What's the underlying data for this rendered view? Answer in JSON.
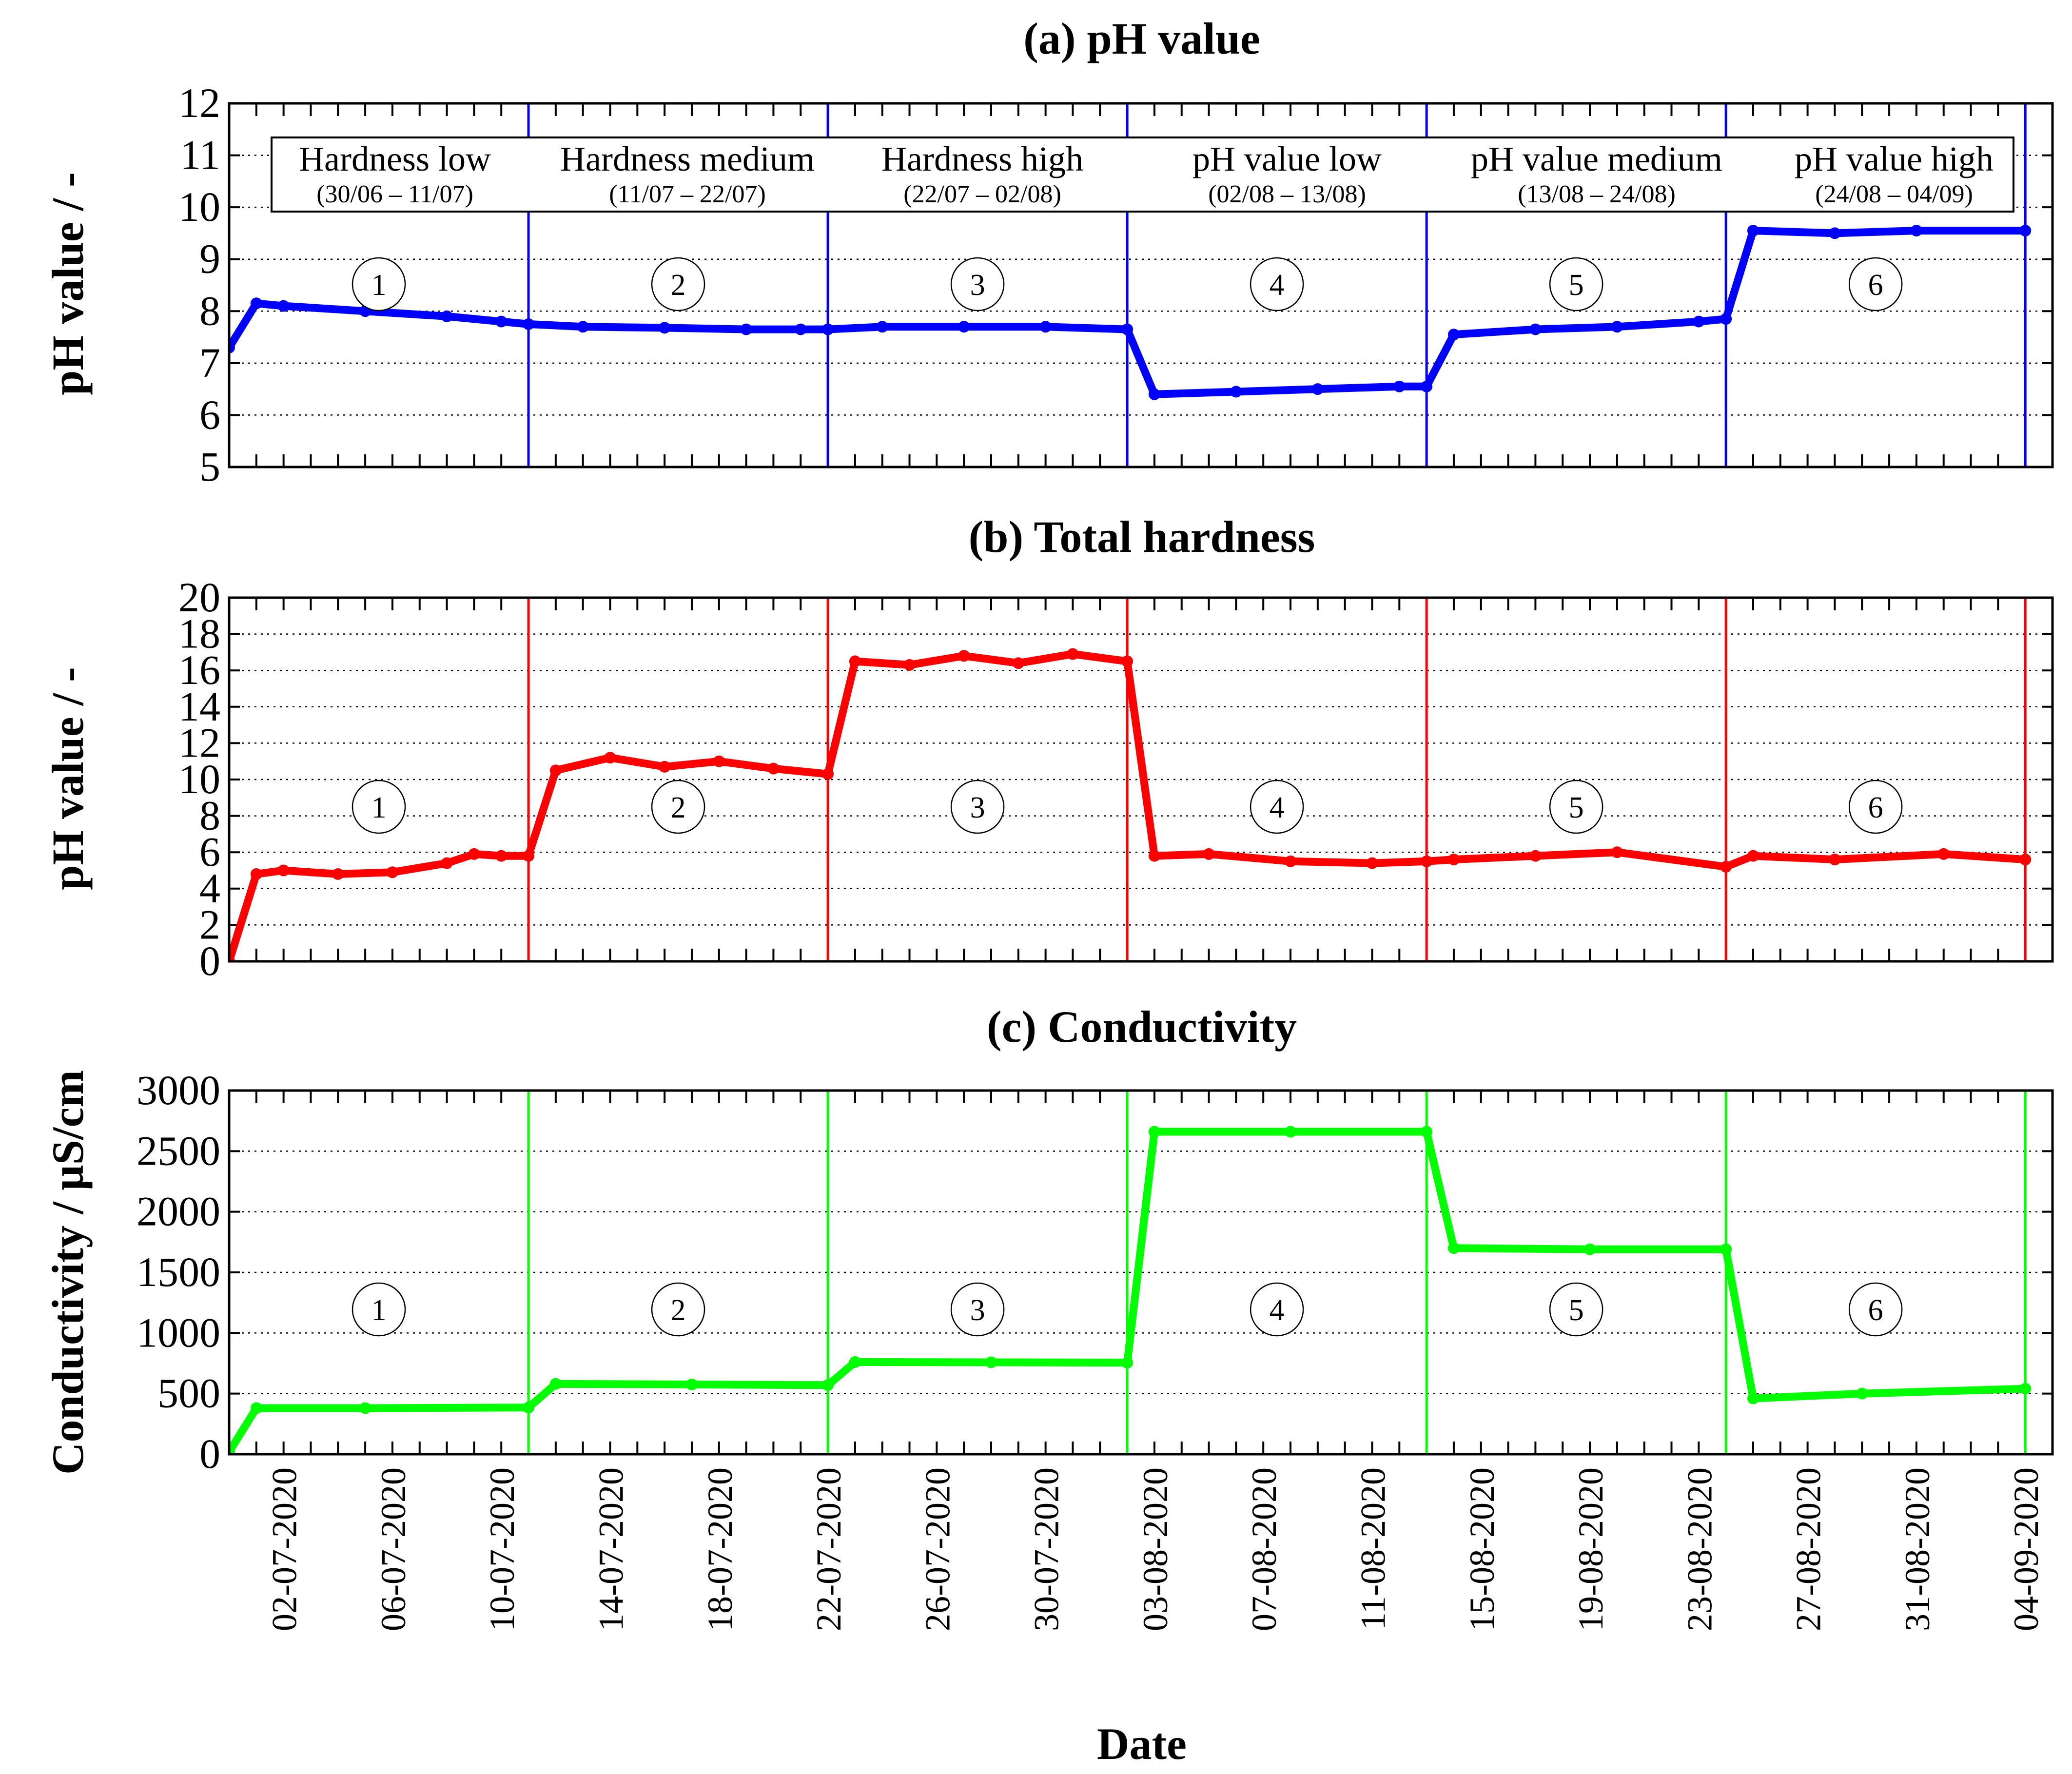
{
  "figure": {
    "x_axis_label": "Date",
    "x_tick_labels": [
      "02-07-2020",
      "06-07-2020",
      "10-07-2020",
      "14-07-2020",
      "18-07-2020",
      "22-07-2020",
      "26-07-2020",
      "30-07-2020",
      "03-08-2020",
      "07-08-2020",
      "11-08-2020",
      "15-08-2020",
      "19-08-2020",
      "23-08-2020",
      "27-08-2020",
      "31-08-2020",
      "04-09-2020"
    ],
    "x_range": [
      "30-06-2020",
      "05-09-2020"
    ]
  },
  "phases": [
    {
      "number": "1",
      "name": "Hardness low",
      "dates": "(30/06 – 11/07)",
      "start": "30-06-2020",
      "end": "11-07-2020"
    },
    {
      "number": "2",
      "name": "Hardness medium",
      "dates": "(11/07 – 22/07)",
      "start": "11-07-2020",
      "end": "22-07-2020"
    },
    {
      "number": "3",
      "name": "Hardness high",
      "dates": "(22/07 – 02/08)",
      "start": "22-07-2020",
      "end": "02-08-2020"
    },
    {
      "number": "4",
      "name": "pH value low",
      "dates": "(02/08 – 13/08)",
      "start": "02-08-2020",
      "end": "13-08-2020"
    },
    {
      "number": "5",
      "name": "pH value medium",
      "dates": "(13/08 – 24/08)",
      "start": "13-08-2020",
      "end": "24-08-2020"
    },
    {
      "number": "6",
      "name": "pH value high",
      "dates": "(24/08 – 04/09)",
      "start": "24-08-2020",
      "end": "04-09-2020"
    }
  ],
  "chart_data": [
    {
      "type": "line",
      "title": "(a) pH value",
      "xlabel": "",
      "ylabel": "pH value / -",
      "ylim": [
        5,
        12
      ],
      "y_ticks": [
        "5",
        "6",
        "7",
        "8",
        "9",
        "10",
        "11",
        "12"
      ],
      "grid": true,
      "color": "#0000ff",
      "series": [
        {
          "x": [
            "30-06-2020",
            "01-07-2020",
            "02-07-2020",
            "05-07-2020",
            "08-07-2020",
            "10-07-2020",
            "11-07-2020",
            "13-07-2020",
            "16-07-2020",
            "19-07-2020",
            "21-07-2020",
            "22-07-2020",
            "24-07-2020",
            "27-07-2020",
            "30-07-2020",
            "02-08-2020",
            "03-08-2020",
            "06-08-2020",
            "09-08-2020",
            "12-08-2020",
            "13-08-2020",
            "14-08-2020",
            "17-08-2020",
            "20-08-2020",
            "23-08-2020",
            "24-08-2020",
            "25-08-2020",
            "28-08-2020",
            "31-08-2020",
            "04-09-2020"
          ],
          "values": [
            7.3,
            8.15,
            8.1,
            8.0,
            7.9,
            7.8,
            7.75,
            7.7,
            7.68,
            7.65,
            7.65,
            7.65,
            7.7,
            7.7,
            7.7,
            7.65,
            6.4,
            6.45,
            6.5,
            6.55,
            6.55,
            7.55,
            7.65,
            7.7,
            7.8,
            7.85,
            9.55,
            9.5,
            9.55,
            9.55
          ]
        }
      ]
    },
    {
      "type": "line",
      "title": "(b) Total hardness",
      "xlabel": "",
      "ylabel": "pH value / -",
      "ylim": [
        0,
        20
      ],
      "y_ticks": [
        "0",
        "2",
        "4",
        "6",
        "8",
        "10",
        "12",
        "14",
        "16",
        "18",
        "20"
      ],
      "grid": true,
      "color": "#ff0000",
      "series": [
        {
          "x": [
            "30-06-2020",
            "01-07-2020",
            "02-07-2020",
            "04-07-2020",
            "06-07-2020",
            "08-07-2020",
            "09-07-2020",
            "10-07-2020",
            "11-07-2020",
            "12-07-2020",
            "14-07-2020",
            "16-07-2020",
            "18-07-2020",
            "20-07-2020",
            "22-07-2020",
            "23-07-2020",
            "25-07-2020",
            "27-07-2020",
            "29-07-2020",
            "31-07-2020",
            "02-08-2020",
            "03-08-2020",
            "05-08-2020",
            "08-08-2020",
            "11-08-2020",
            "13-08-2020",
            "14-08-2020",
            "17-08-2020",
            "20-08-2020",
            "24-08-2020",
            "25-08-2020",
            "28-08-2020",
            "01-09-2020",
            "04-09-2020"
          ],
          "values": [
            0.0,
            4.8,
            5.0,
            4.8,
            4.9,
            5.4,
            5.9,
            5.8,
            5.8,
            10.5,
            11.2,
            10.7,
            11.0,
            10.6,
            10.3,
            16.5,
            16.3,
            16.8,
            16.4,
            16.9,
            16.5,
            5.8,
            5.9,
            5.5,
            5.4,
            5.5,
            5.6,
            5.8,
            6.0,
            5.2,
            5.8,
            5.6,
            5.9,
            5.6
          ]
        }
      ]
    },
    {
      "type": "line",
      "title": "(c) Conductivity",
      "xlabel": "Date",
      "ylabel": "Conductivity / µS/cm",
      "ylim": [
        0,
        3000
      ],
      "y_ticks": [
        "0",
        "500",
        "1000",
        "1500",
        "2000",
        "2500",
        "3000"
      ],
      "grid": true,
      "color": "#00ff00",
      "series": [
        {
          "x": [
            "30-06-2020",
            "01-07-2020",
            "05-07-2020",
            "11-07-2020",
            "12-07-2020",
            "17-07-2020",
            "22-07-2020",
            "23-07-2020",
            "28-07-2020",
            "02-08-2020",
            "03-08-2020",
            "08-08-2020",
            "13-08-2020",
            "14-08-2020",
            "19-08-2020",
            "24-08-2020",
            "25-08-2020",
            "29-08-2020",
            "04-09-2020"
          ],
          "values": [
            20,
            380,
            380,
            385,
            580,
            575,
            570,
            760,
            758,
            755,
            2660,
            2660,
            2660,
            1700,
            1690,
            1690,
            460,
            500,
            540
          ]
        }
      ]
    }
  ]
}
